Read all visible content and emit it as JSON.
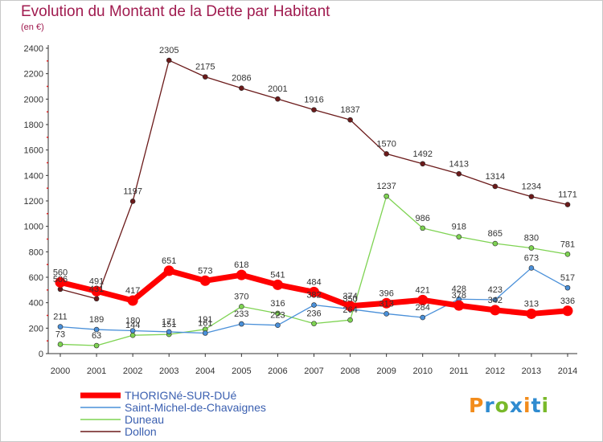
{
  "page": {
    "title": "Evolution du Montant de la Dette par Habitant",
    "unit": "(en €)"
  },
  "logo": {
    "letters": [
      "P",
      "r",
      "o",
      "x",
      "i",
      "t",
      "i"
    ],
    "colors": [
      "#f28c1b",
      "#2f8bd0",
      "#79b92a",
      "#2f8bd0",
      "#f28c1b",
      "#2f8bd0",
      "#79b92a"
    ]
  },
  "chart_data": {
    "type": "line",
    "title": "Evolution du Montant de la Dette par Habitant",
    "ylabel": "(en €)",
    "x": [
      "2000",
      "2001",
      "2002",
      "2003",
      "2004",
      "2005",
      "2006",
      "2007",
      "2008",
      "2009",
      "2010",
      "2011",
      "2012",
      "2013",
      "2014"
    ],
    "ylim": [
      0,
      2400
    ],
    "yticks": [
      0,
      200,
      400,
      600,
      800,
      1000,
      1200,
      1400,
      1600,
      1800,
      2000,
      2200,
      2400
    ],
    "grid": false,
    "legend": "bottom-left",
    "series": [
      {
        "name": "THORIGNé-SUR-DUé",
        "color": "#ff0000",
        "values": [
          560,
          491,
          417,
          651,
          573,
          618,
          541,
          484,
          374,
          396,
          421,
          378,
          342,
          313,
          336
        ],
        "labels": [
          "560",
          "491",
          "417",
          "651",
          "573",
          "618",
          "541",
          "484",
          "374",
          "396",
          "421",
          "378",
          "342",
          "313",
          "336"
        ]
      },
      {
        "name": "Saint-Michel-de-Chavaignes",
        "color": "#4a90d9",
        "values": [
          211,
          189,
          180,
          171,
          161,
          233,
          223,
          382,
          350,
          313,
          284,
          428,
          423,
          673,
          517
        ],
        "labels": [
          "211",
          "189",
          "180",
          "171",
          "161",
          "233",
          "223",
          "382",
          "350",
          "313",
          "284",
          "428",
          "423",
          "673",
          "517"
        ]
      },
      {
        "name": "Duneau",
        "color": "#7ed352",
        "values": [
          73,
          63,
          144,
          151,
          191,
          370,
          316,
          236,
          264,
          1237,
          986,
          918,
          865,
          830,
          781
        ],
        "labels": [
          "73",
          "63",
          "144",
          "151",
          "191",
          "370",
          "316",
          "236",
          "264",
          "1237",
          "986",
          "918",
          "865",
          "830",
          "781"
        ]
      },
      {
        "name": "Dollon",
        "color": "#6b1a1a",
        "values": [
          506,
          431,
          1197,
          2305,
          2175,
          2086,
          2001,
          1916,
          1837,
          1570,
          1492,
          1413,
          1314,
          1234,
          1171
        ],
        "labels": [
          "506",
          "431",
          "1197",
          "2305",
          "2175",
          "2086",
          "2001",
          "1916",
          "1837",
          "1570",
          "1492",
          "1413",
          "1314",
          "1234",
          "1171"
        ]
      }
    ]
  }
}
